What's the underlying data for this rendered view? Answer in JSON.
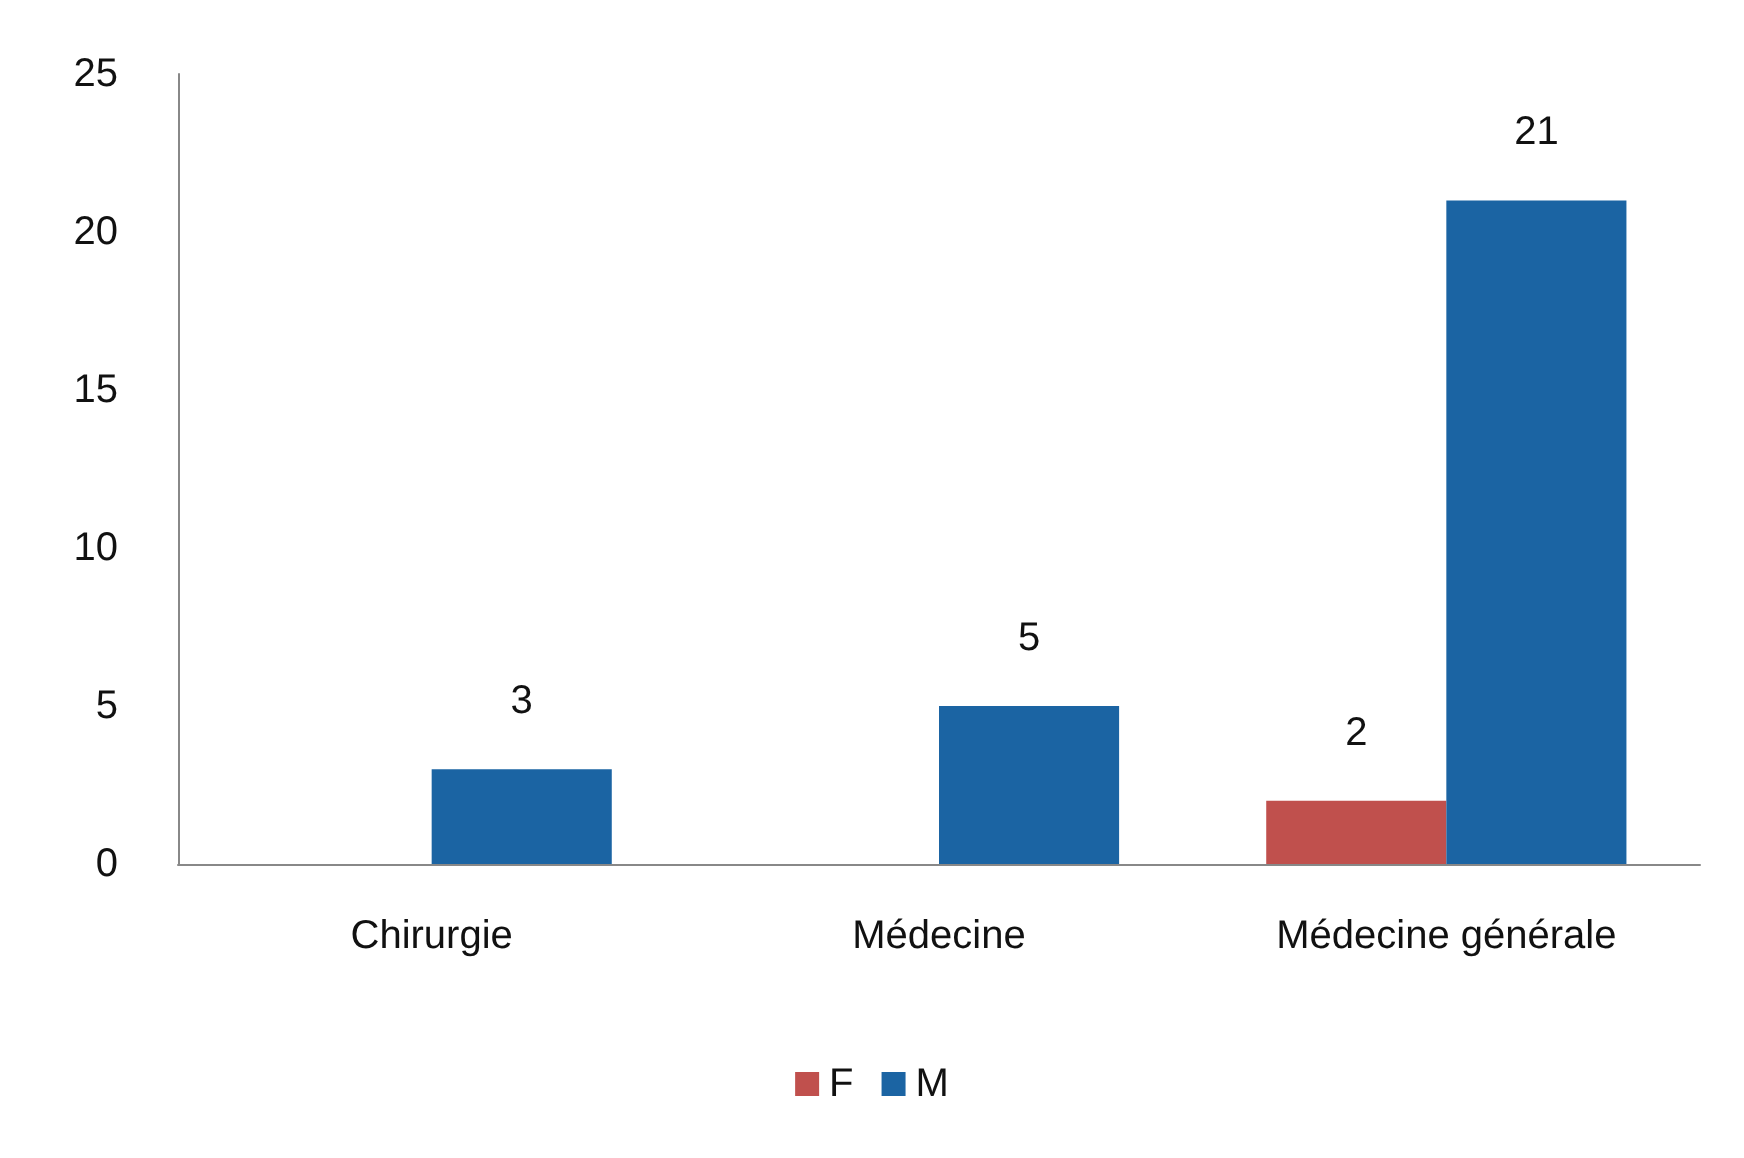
{
  "chart_data": {
    "type": "bar",
    "categories": [
      "Chirurgie",
      "Médecine",
      "Médecine générale"
    ],
    "series": [
      {
        "name": "F",
        "color": "#c0504d",
        "values": [
          null,
          null,
          2
        ]
      },
      {
        "name": "M",
        "color": "#1b64a3",
        "values": [
          3,
          5,
          21
        ]
      }
    ],
    "ylim": [
      0,
      25
    ],
    "yticks": [
      0,
      5,
      10,
      15,
      20,
      25
    ],
    "grid": false,
    "legend": "bottom",
    "data_labels": true
  }
}
